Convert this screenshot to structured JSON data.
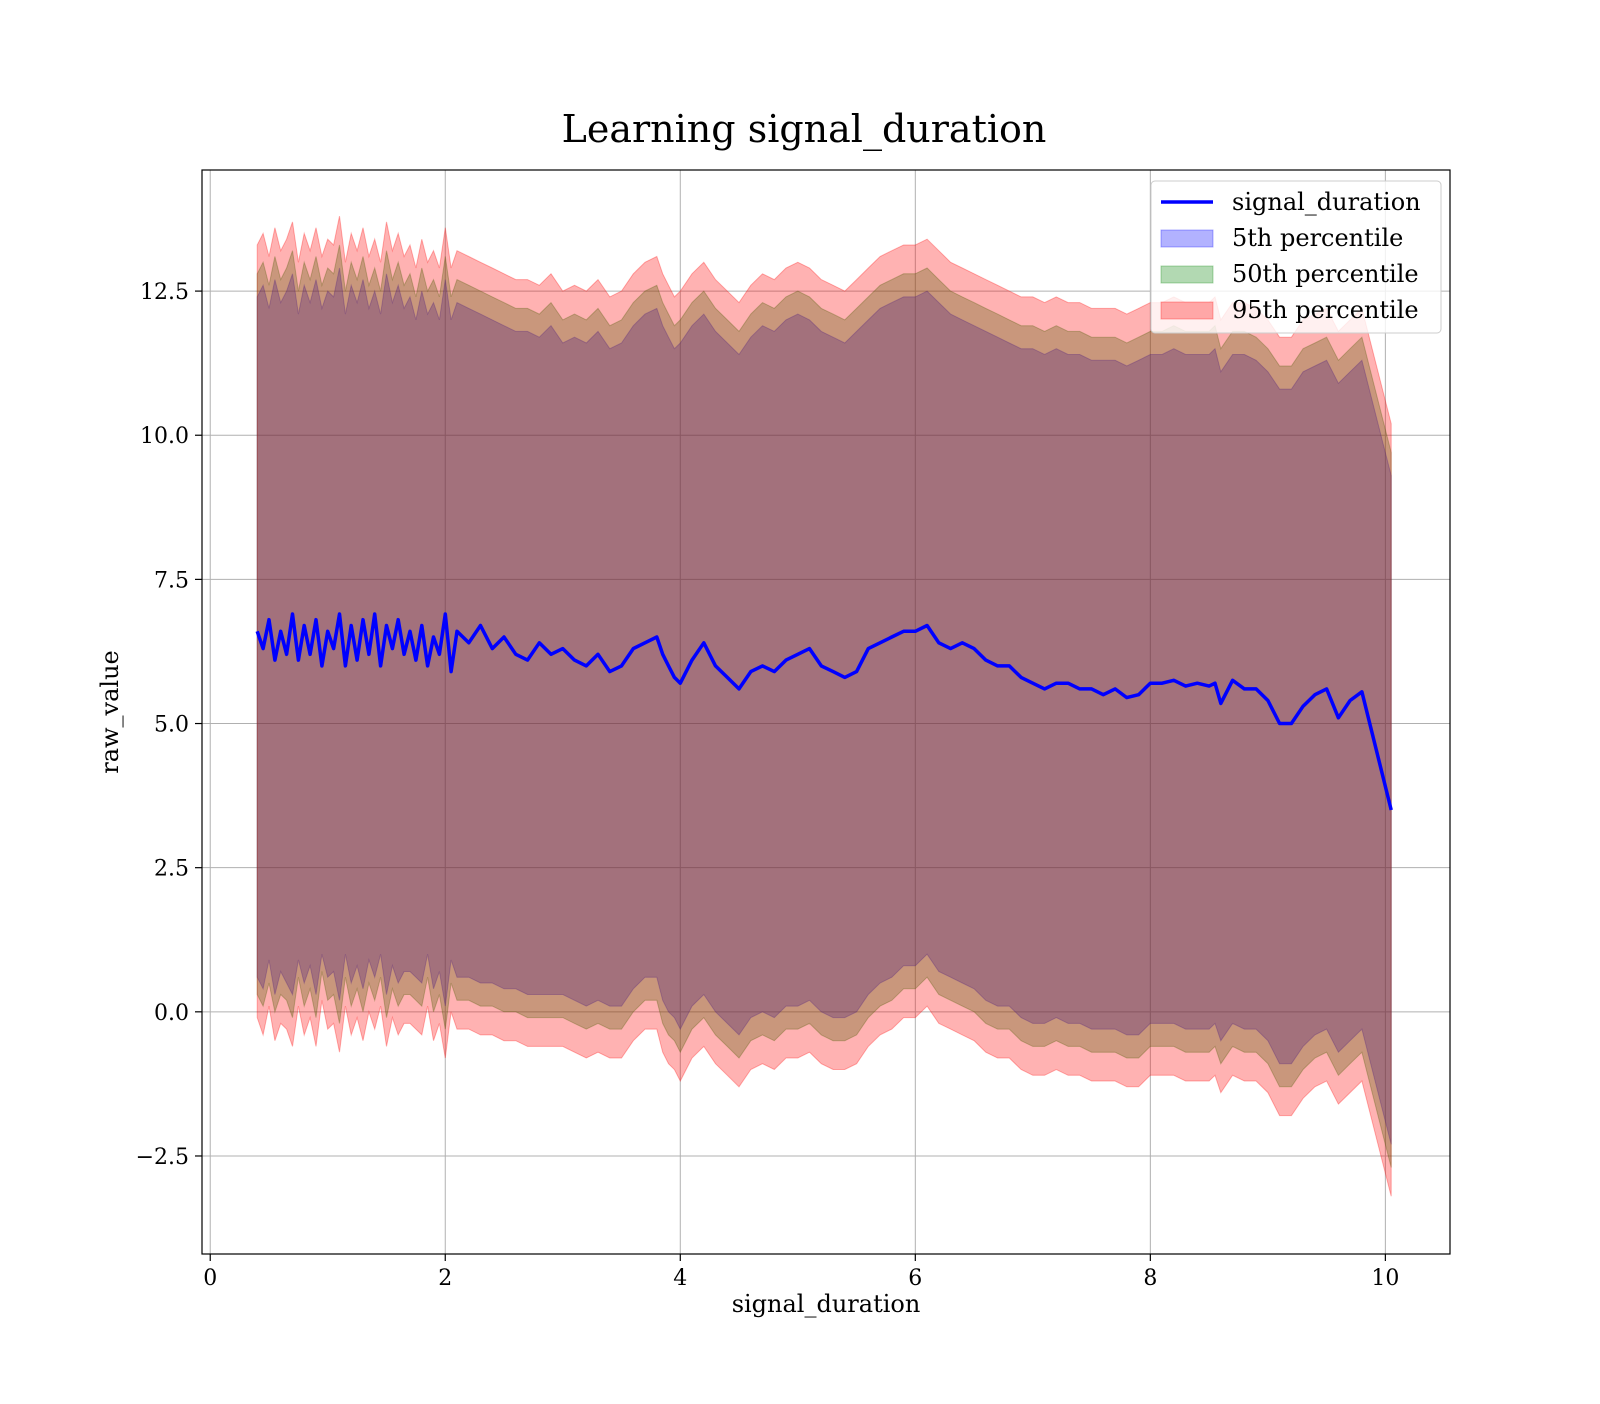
{
  "chart_data": {
    "type": "line",
    "title": "Learning signal_duration",
    "xlabel": "signal_duration",
    "ylabel": "raw_value",
    "xlim": [
      -0.07,
      10.55
    ],
    "ylim": [
      -4.2,
      14.6
    ],
    "x_ticks": [
      0,
      2,
      4,
      6,
      8,
      10
    ],
    "x_tick_labels": [
      "0",
      "2",
      "4",
      "6",
      "8",
      "10"
    ],
    "y_ticks": [
      -2.5,
      0.0,
      2.5,
      5.0,
      7.5,
      10.0,
      12.5
    ],
    "y_tick_labels": [
      "−2.5",
      "0.0",
      "2.5",
      "5.0",
      "7.5",
      "10.0",
      "12.5"
    ],
    "grid": true,
    "legend_position": "top-right",
    "colors": {
      "line": "#0000ff",
      "band_5th": "#0000ff",
      "band_50th": "#008000",
      "band_95th": "#ff0000",
      "grid": "#b0b0b0"
    },
    "legend": [
      {
        "label": "signal_duration",
        "kind": "line",
        "color": "#0000ff"
      },
      {
        "label": "5th percentile",
        "kind": "patch",
        "color": "#0000ff"
      },
      {
        "label": "50th percentile",
        "kind": "patch",
        "color": "#008000"
      },
      {
        "label": "95th percentile",
        "kind": "patch",
        "color": "#ff0000"
      }
    ],
    "series": [
      {
        "name": "signal_duration",
        "x": [
          0.4,
          0.45,
          0.5,
          0.55,
          0.6,
          0.65,
          0.7,
          0.75,
          0.8,
          0.85,
          0.9,
          0.95,
          1.0,
          1.05,
          1.1,
          1.15,
          1.2,
          1.25,
          1.3,
          1.35,
          1.4,
          1.45,
          1.5,
          1.55,
          1.6,
          1.65,
          1.7,
          1.75,
          1.8,
          1.85,
          1.9,
          1.95,
          2.0,
          2.05,
          2.1,
          2.2,
          2.3,
          2.4,
          2.5,
          2.6,
          2.7,
          2.8,
          2.9,
          3.0,
          3.1,
          3.2,
          3.3,
          3.4,
          3.5,
          3.6,
          3.7,
          3.8,
          3.85,
          3.9,
          3.95,
          4.0,
          4.1,
          4.2,
          4.3,
          4.4,
          4.5,
          4.6,
          4.7,
          4.8,
          4.9,
          5.0,
          5.1,
          5.2,
          5.3,
          5.4,
          5.5,
          5.6,
          5.7,
          5.8,
          5.9,
          6.0,
          6.1,
          6.2,
          6.3,
          6.4,
          6.5,
          6.6,
          6.7,
          6.8,
          6.9,
          7.0,
          7.1,
          7.2,
          7.3,
          7.4,
          7.5,
          7.6,
          7.7,
          7.8,
          7.9,
          8.0,
          8.1,
          8.2,
          8.3,
          8.4,
          8.5,
          8.55,
          8.6,
          8.7,
          8.8,
          8.9,
          9.0,
          9.1,
          9.2,
          9.3,
          9.4,
          9.5,
          9.6,
          9.7,
          9.8,
          10.05
        ],
        "values": [
          6.6,
          6.3,
          6.8,
          6.1,
          6.6,
          6.2,
          6.9,
          6.1,
          6.7,
          6.2,
          6.8,
          6.0,
          6.6,
          6.3,
          6.9,
          6.0,
          6.7,
          6.1,
          6.8,
          6.2,
          6.9,
          6.0,
          6.7,
          6.3,
          6.8,
          6.2,
          6.6,
          6.1,
          6.7,
          6.0,
          6.5,
          6.2,
          6.9,
          5.9,
          6.6,
          6.4,
          6.7,
          6.3,
          6.5,
          6.2,
          6.1,
          6.4,
          6.2,
          6.3,
          6.1,
          6.0,
          6.2,
          5.9,
          6.0,
          6.3,
          6.4,
          6.5,
          6.2,
          6.0,
          5.8,
          5.7,
          6.1,
          6.4,
          6.0,
          5.8,
          5.6,
          5.9,
          6.0,
          5.9,
          6.1,
          6.2,
          6.3,
          6.0,
          5.9,
          5.8,
          5.9,
          6.3,
          6.4,
          6.5,
          6.6,
          6.6,
          6.7,
          6.4,
          6.3,
          6.4,
          6.3,
          6.1,
          6.0,
          6.0,
          5.8,
          5.7,
          5.6,
          5.7,
          5.7,
          5.6,
          5.6,
          5.5,
          5.6,
          5.45,
          5.5,
          5.7,
          5.7,
          5.75,
          5.65,
          5.7,
          5.65,
          5.7,
          5.35,
          5.75,
          5.6,
          5.6,
          5.4,
          5.0,
          5.0,
          5.3,
          5.5,
          5.6,
          5.1,
          5.4,
          5.55,
          3.5
        ],
        "band_95th": {
          "upper": [
            13.3,
            13.5,
            13.1,
            13.6,
            13.2,
            13.4,
            13.7,
            13.0,
            13.5,
            13.2,
            13.6,
            13.1,
            13.4,
            13.3,
            13.8,
            13.0,
            13.5,
            13.2,
            13.6,
            13.1,
            13.4,
            13.0,
            13.7,
            13.2,
            13.5,
            13.1,
            13.3,
            12.9,
            13.4,
            13.0,
            13.2,
            12.9,
            13.6,
            12.9,
            13.2,
            13.1,
            13.0,
            12.9,
            12.8,
            12.7,
            12.7,
            12.6,
            12.8,
            12.5,
            12.6,
            12.5,
            12.7,
            12.4,
            12.5,
            12.8,
            13.0,
            13.1,
            12.8,
            12.6,
            12.4,
            12.5,
            12.8,
            13.0,
            12.7,
            12.5,
            12.3,
            12.6,
            12.8,
            12.7,
            12.9,
            13.0,
            12.9,
            12.7,
            12.6,
            12.5,
            12.7,
            12.9,
            13.1,
            13.2,
            13.3,
            13.3,
            13.4,
            13.2,
            13.0,
            12.9,
            12.8,
            12.7,
            12.6,
            12.5,
            12.4,
            12.4,
            12.3,
            12.4,
            12.3,
            12.3,
            12.2,
            12.2,
            12.2,
            12.1,
            12.2,
            12.3,
            12.3,
            12.4,
            12.3,
            12.3,
            12.3,
            12.4,
            12.0,
            12.3,
            12.3,
            12.2,
            12.0,
            11.7,
            11.7,
            12.0,
            12.1,
            12.2,
            11.8,
            12.0,
            12.2,
            10.2
          ],
          "lower": [
            -0.1,
            -0.4,
            0.1,
            -0.5,
            -0.2,
            -0.3,
            -0.6,
            0.1,
            -0.4,
            -0.1,
            -0.6,
            0.2,
            -0.3,
            -0.2,
            -0.7,
            0.1,
            -0.4,
            -0.1,
            -0.5,
            0.0,
            -0.3,
            0.1,
            -0.6,
            -0.1,
            -0.4,
            -0.2,
            -0.2,
            -0.3,
            -0.4,
            0.1,
            -0.5,
            -0.2,
            -0.8,
            0.0,
            -0.3,
            -0.3,
            -0.4,
            -0.4,
            -0.5,
            -0.5,
            -0.6,
            -0.6,
            -0.6,
            -0.6,
            -0.7,
            -0.8,
            -0.7,
            -0.8,
            -0.8,
            -0.5,
            -0.3,
            -0.3,
            -0.7,
            -0.9,
            -1.0,
            -1.2,
            -0.8,
            -0.6,
            -0.9,
            -1.1,
            -1.3,
            -1.0,
            -0.9,
            -1.0,
            -0.8,
            -0.8,
            -0.7,
            -0.9,
            -1.0,
            -1.0,
            -0.9,
            -0.6,
            -0.4,
            -0.3,
            -0.1,
            -0.1,
            0.1,
            -0.2,
            -0.3,
            -0.4,
            -0.5,
            -0.7,
            -0.8,
            -0.8,
            -1.0,
            -1.1,
            -1.1,
            -1.0,
            -1.1,
            -1.1,
            -1.2,
            -1.2,
            -1.2,
            -1.3,
            -1.3,
            -1.1,
            -1.1,
            -1.1,
            -1.2,
            -1.2,
            -1.2,
            -1.1,
            -1.4,
            -1.1,
            -1.2,
            -1.2,
            -1.4,
            -1.8,
            -1.8,
            -1.5,
            -1.3,
            -1.2,
            -1.6,
            -1.4,
            -1.2,
            -3.2
          ]
        },
        "band_50th": {
          "upper": [
            12.8,
            13.0,
            12.6,
            13.1,
            12.7,
            12.9,
            13.2,
            12.5,
            13.0,
            12.7,
            13.1,
            12.6,
            12.9,
            12.8,
            13.3,
            12.5,
            13.0,
            12.7,
            13.1,
            12.6,
            12.9,
            12.5,
            13.2,
            12.7,
            13.0,
            12.6,
            12.8,
            12.4,
            12.9,
            12.5,
            12.7,
            12.4,
            13.1,
            12.4,
            12.7,
            12.6,
            12.5,
            12.4,
            12.3,
            12.2,
            12.2,
            12.1,
            12.3,
            12.0,
            12.1,
            12.0,
            12.2,
            11.9,
            12.0,
            12.3,
            12.5,
            12.6,
            12.3,
            12.1,
            11.9,
            12.0,
            12.3,
            12.5,
            12.2,
            12.0,
            11.8,
            12.1,
            12.3,
            12.2,
            12.4,
            12.5,
            12.4,
            12.2,
            12.1,
            12.0,
            12.2,
            12.4,
            12.6,
            12.7,
            12.8,
            12.8,
            12.9,
            12.7,
            12.5,
            12.4,
            12.3,
            12.2,
            12.1,
            12.0,
            11.9,
            11.9,
            11.8,
            11.9,
            11.8,
            11.8,
            11.7,
            11.7,
            11.7,
            11.6,
            11.7,
            11.8,
            11.8,
            11.9,
            11.8,
            11.8,
            11.8,
            11.9,
            11.5,
            11.8,
            11.8,
            11.7,
            11.5,
            11.2,
            11.2,
            11.5,
            11.6,
            11.7,
            11.3,
            11.5,
            11.7,
            9.7
          ],
          "lower": [
            0.3,
            0.1,
            0.5,
            0.0,
            0.3,
            0.2,
            -0.1,
            0.6,
            0.1,
            0.4,
            -0.1,
            0.7,
            0.2,
            0.3,
            -0.2,
            0.6,
            0.1,
            0.4,
            0.0,
            0.5,
            0.2,
            0.6,
            -0.1,
            0.4,
            0.1,
            0.3,
            0.3,
            0.2,
            0.1,
            0.6,
            0.0,
            0.3,
            -0.3,
            0.5,
            0.2,
            0.2,
            0.1,
            0.1,
            0.0,
            0.0,
            -0.1,
            -0.1,
            -0.1,
            -0.1,
            -0.2,
            -0.3,
            -0.2,
            -0.3,
            -0.3,
            0.0,
            0.2,
            0.2,
            -0.2,
            -0.4,
            -0.5,
            -0.7,
            -0.3,
            -0.1,
            -0.4,
            -0.6,
            -0.8,
            -0.5,
            -0.4,
            -0.5,
            -0.3,
            -0.3,
            -0.2,
            -0.4,
            -0.5,
            -0.5,
            -0.4,
            -0.1,
            0.1,
            0.2,
            0.4,
            0.4,
            0.6,
            0.3,
            0.2,
            0.1,
            0.0,
            -0.2,
            -0.3,
            -0.3,
            -0.5,
            -0.6,
            -0.6,
            -0.5,
            -0.6,
            -0.6,
            -0.7,
            -0.7,
            -0.7,
            -0.8,
            -0.8,
            -0.6,
            -0.6,
            -0.6,
            -0.7,
            -0.7,
            -0.7,
            -0.6,
            -0.9,
            -0.6,
            -0.7,
            -0.7,
            -0.9,
            -1.3,
            -1.3,
            -1.0,
            -0.8,
            -0.7,
            -1.1,
            -0.9,
            -0.7,
            -2.7
          ]
        },
        "band_5th": {
          "upper": [
            12.4,
            12.6,
            12.2,
            12.7,
            12.3,
            12.5,
            12.8,
            12.1,
            12.6,
            12.3,
            12.7,
            12.2,
            12.5,
            12.4,
            12.9,
            12.1,
            12.6,
            12.3,
            12.7,
            12.2,
            12.5,
            12.1,
            12.8,
            12.3,
            12.6,
            12.2,
            12.4,
            12.0,
            12.5,
            12.1,
            12.3,
            12.0,
            12.7,
            12.0,
            12.3,
            12.2,
            12.1,
            12.0,
            11.9,
            11.8,
            11.8,
            11.7,
            11.9,
            11.6,
            11.7,
            11.6,
            11.8,
            11.5,
            11.6,
            11.9,
            12.1,
            12.2,
            11.9,
            11.7,
            11.5,
            11.6,
            11.9,
            12.1,
            11.8,
            11.6,
            11.4,
            11.7,
            11.9,
            11.8,
            12.0,
            12.1,
            12.0,
            11.8,
            11.7,
            11.6,
            11.8,
            12.0,
            12.2,
            12.3,
            12.4,
            12.4,
            12.5,
            12.3,
            12.1,
            12.0,
            11.9,
            11.8,
            11.7,
            11.6,
            11.5,
            11.5,
            11.4,
            11.5,
            11.4,
            11.4,
            11.3,
            11.3,
            11.3,
            11.2,
            11.3,
            11.4,
            11.4,
            11.5,
            11.4,
            11.4,
            11.4,
            11.5,
            11.1,
            11.4,
            11.4,
            11.3,
            11.1,
            10.8,
            10.8,
            11.1,
            11.2,
            11.3,
            10.9,
            11.1,
            11.3,
            9.3
          ],
          "lower": [
            0.6,
            0.4,
            0.9,
            0.3,
            0.7,
            0.5,
            0.3,
            0.9,
            0.5,
            0.8,
            0.3,
            1.0,
            0.6,
            0.7,
            0.2,
            1.0,
            0.5,
            0.8,
            0.4,
            0.9,
            0.6,
            1.0,
            0.3,
            0.8,
            0.5,
            0.7,
            0.7,
            0.6,
            0.5,
            1.0,
            0.4,
            0.7,
            0.1,
            0.9,
            0.6,
            0.6,
            0.5,
            0.5,
            0.4,
            0.4,
            0.3,
            0.3,
            0.3,
            0.3,
            0.2,
            0.1,
            0.2,
            0.1,
            0.1,
            0.4,
            0.6,
            0.6,
            0.2,
            0.0,
            -0.1,
            -0.3,
            0.1,
            0.3,
            0.0,
            -0.2,
            -0.4,
            -0.1,
            0.0,
            -0.1,
            0.1,
            0.1,
            0.2,
            0.0,
            -0.1,
            -0.1,
            0.0,
            0.3,
            0.5,
            0.6,
            0.8,
            0.8,
            1.0,
            0.7,
            0.6,
            0.5,
            0.4,
            0.2,
            0.1,
            0.1,
            -0.1,
            -0.2,
            -0.2,
            -0.1,
            -0.2,
            -0.2,
            -0.3,
            -0.3,
            -0.3,
            -0.4,
            -0.4,
            -0.2,
            -0.2,
            -0.2,
            -0.3,
            -0.3,
            -0.3,
            -0.2,
            -0.5,
            -0.2,
            -0.3,
            -0.3,
            -0.5,
            -0.9,
            -0.9,
            -0.6,
            -0.4,
            -0.3,
            -0.7,
            -0.5,
            -0.3,
            -2.3
          ]
        }
      }
    ]
  }
}
